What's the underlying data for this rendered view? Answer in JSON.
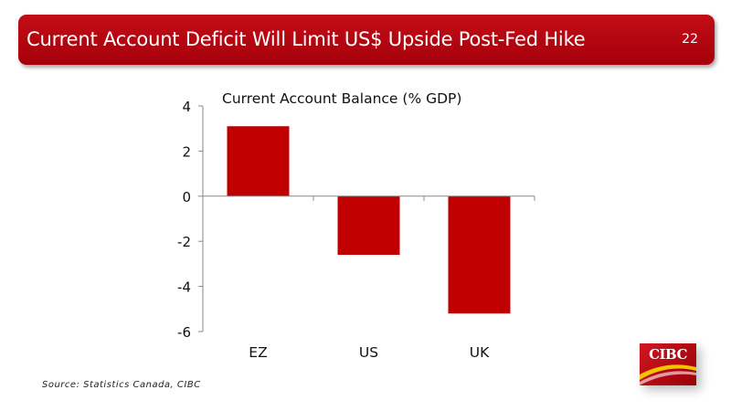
{
  "header": {
    "title": "Current Account Deficit Will Limit US$ Upside Post-Fed Hike",
    "slide_number": "22"
  },
  "source": "Source: Statistics Canada, CIBC",
  "logo": {
    "text": "CIBC"
  },
  "colors": {
    "header": "#b00511",
    "bar": "#c00000",
    "axis": "#888888"
  },
  "chart_data": {
    "type": "bar",
    "title": "Current Account Balance (% GDP)",
    "categories": [
      "EZ",
      "US",
      "UK"
    ],
    "values": [
      3.1,
      -2.6,
      -5.2
    ],
    "ylim": [
      -6,
      4
    ],
    "yticks": [
      4,
      2,
      0,
      -2,
      -4,
      -6
    ],
    "xlabel": "",
    "ylabel": "",
    "grid": false,
    "legend": false
  }
}
